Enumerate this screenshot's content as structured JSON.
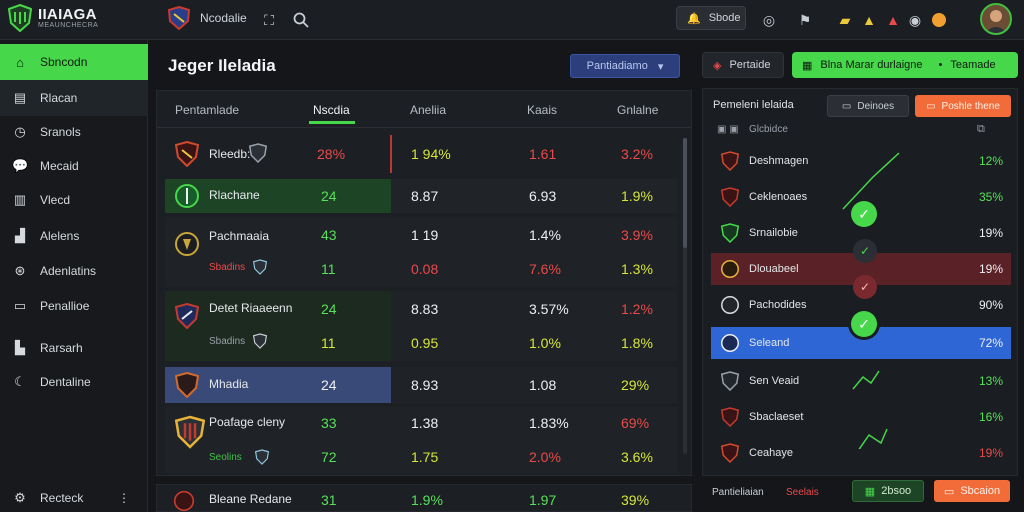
{
  "header": {
    "logo_title": "IIAIAGA",
    "logo_subtitle": "MEAUNCHECRA",
    "team_name": "Ncodalie",
    "alert_button": "Sbode",
    "avatar_alt": "user"
  },
  "sidebar": {
    "items": [
      {
        "label": "Sbncodn"
      },
      {
        "label": "Rlacan"
      },
      {
        "label": "Sranols"
      },
      {
        "label": "Mecaid"
      },
      {
        "label": "Vlecd"
      },
      {
        "label": "Alelens"
      },
      {
        "label": "Adenlatins"
      },
      {
        "label": "Penallioe"
      },
      {
        "label": "Rarsarh"
      },
      {
        "label": "Dentaline"
      }
    ],
    "footer_label": "Recteck"
  },
  "main": {
    "title": "Jeger Ileladia",
    "filter_button": "Pantiadiamo",
    "columns": [
      "Pentamlade",
      "Nscdia",
      "Aneliia",
      "Kaais",
      "Gnlalne"
    ],
    "rows": [
      {
        "name": "Rleedb:",
        "sub": "",
        "c1": "28%",
        "c1b": "",
        "c2": "1 94%",
        "c2b": "",
        "c3": "1.61",
        "c3b": "",
        "c4": "3.2%",
        "c4b": ""
      },
      {
        "name": "Rlachane",
        "sub": "",
        "c1": "24",
        "c1b": "",
        "c2": "8.87",
        "c2b": "",
        "c3": "6.93",
        "c3b": "",
        "c4": "1.9%",
        "c4b": ""
      },
      {
        "name": "Pachmaaia",
        "sub": "Sbadins",
        "c1": "43",
        "c1b": "11",
        "c2": "1 19",
        "c2b": "0.08",
        "c3": "1.4%",
        "c3b": "7.6%",
        "c4": "3.9%",
        "c4b": "1.3%"
      },
      {
        "name": "Detet Riaaeenn",
        "sub": "Sbadins",
        "c1": "24",
        "c1b": "11",
        "c2": "8.83",
        "c2b": "0.95",
        "c3": "3.57%",
        "c3b": "1.0%",
        "c4": "1.2%",
        "c4b": "1.8%"
      },
      {
        "name": "Mhadia",
        "sub": "",
        "c1": "24",
        "c1b": "",
        "c2": "8.93",
        "c2b": "",
        "c3": "1.08",
        "c3b": "",
        "c4": "29%",
        "c4b": ""
      },
      {
        "name": "Poafage cleny",
        "sub": "Seolins",
        "c1": "33",
        "c1b": "72",
        "c2": "1.38",
        "c2b": "1.75",
        "c3": "1.83%",
        "c3b": "2.0%",
        "c4": "69%",
        "c4b": "3.6%"
      },
      {
        "name": "Bleane Redane",
        "sub": "",
        "c1": "31",
        "c1b": "",
        "c2": "1.9%",
        "c2b": "",
        "c3": "1.97",
        "c3b": "",
        "c4": "39%",
        "c4b": ""
      }
    ]
  },
  "right_panel": {
    "header_button": "Pertaide",
    "cta_button": "Blna Marar durlaigne",
    "cta_secondary": "Teamade",
    "subtitle": "Pemeleni lelaida",
    "btn_secondary": "Deinoes",
    "btn_orange": "Poshle thene",
    "filter_label": "Glcbidce",
    "rows": [
      {
        "name": "Deshmagen",
        "pct": "12%"
      },
      {
        "name": "Ceklenoaes",
        "pct": "35%"
      },
      {
        "name": "Srnailobie",
        "pct": "19%"
      },
      {
        "name": "Dlouabeel",
        "pct": "19%"
      },
      {
        "name": "Pachodides",
        "pct": "90%"
      },
      {
        "name": "Seleand",
        "pct": "72%"
      },
      {
        "name": "Sen Veaid",
        "pct": "13%"
      },
      {
        "name": "Sbaclaeset",
        "pct": "16%"
      },
      {
        "name": "Ceahaye",
        "pct": "19%"
      }
    ],
    "footer_label": "Pantieliaian",
    "footer_sub": "Seelais",
    "footer_btn_green": "2bsoo",
    "footer_btn_orange": "Sbcaion"
  },
  "colors": {
    "accent": "#46d84a",
    "danger": "#ea4a4a",
    "blue": "#2f66d6",
    "orange": "#f26c3a"
  }
}
